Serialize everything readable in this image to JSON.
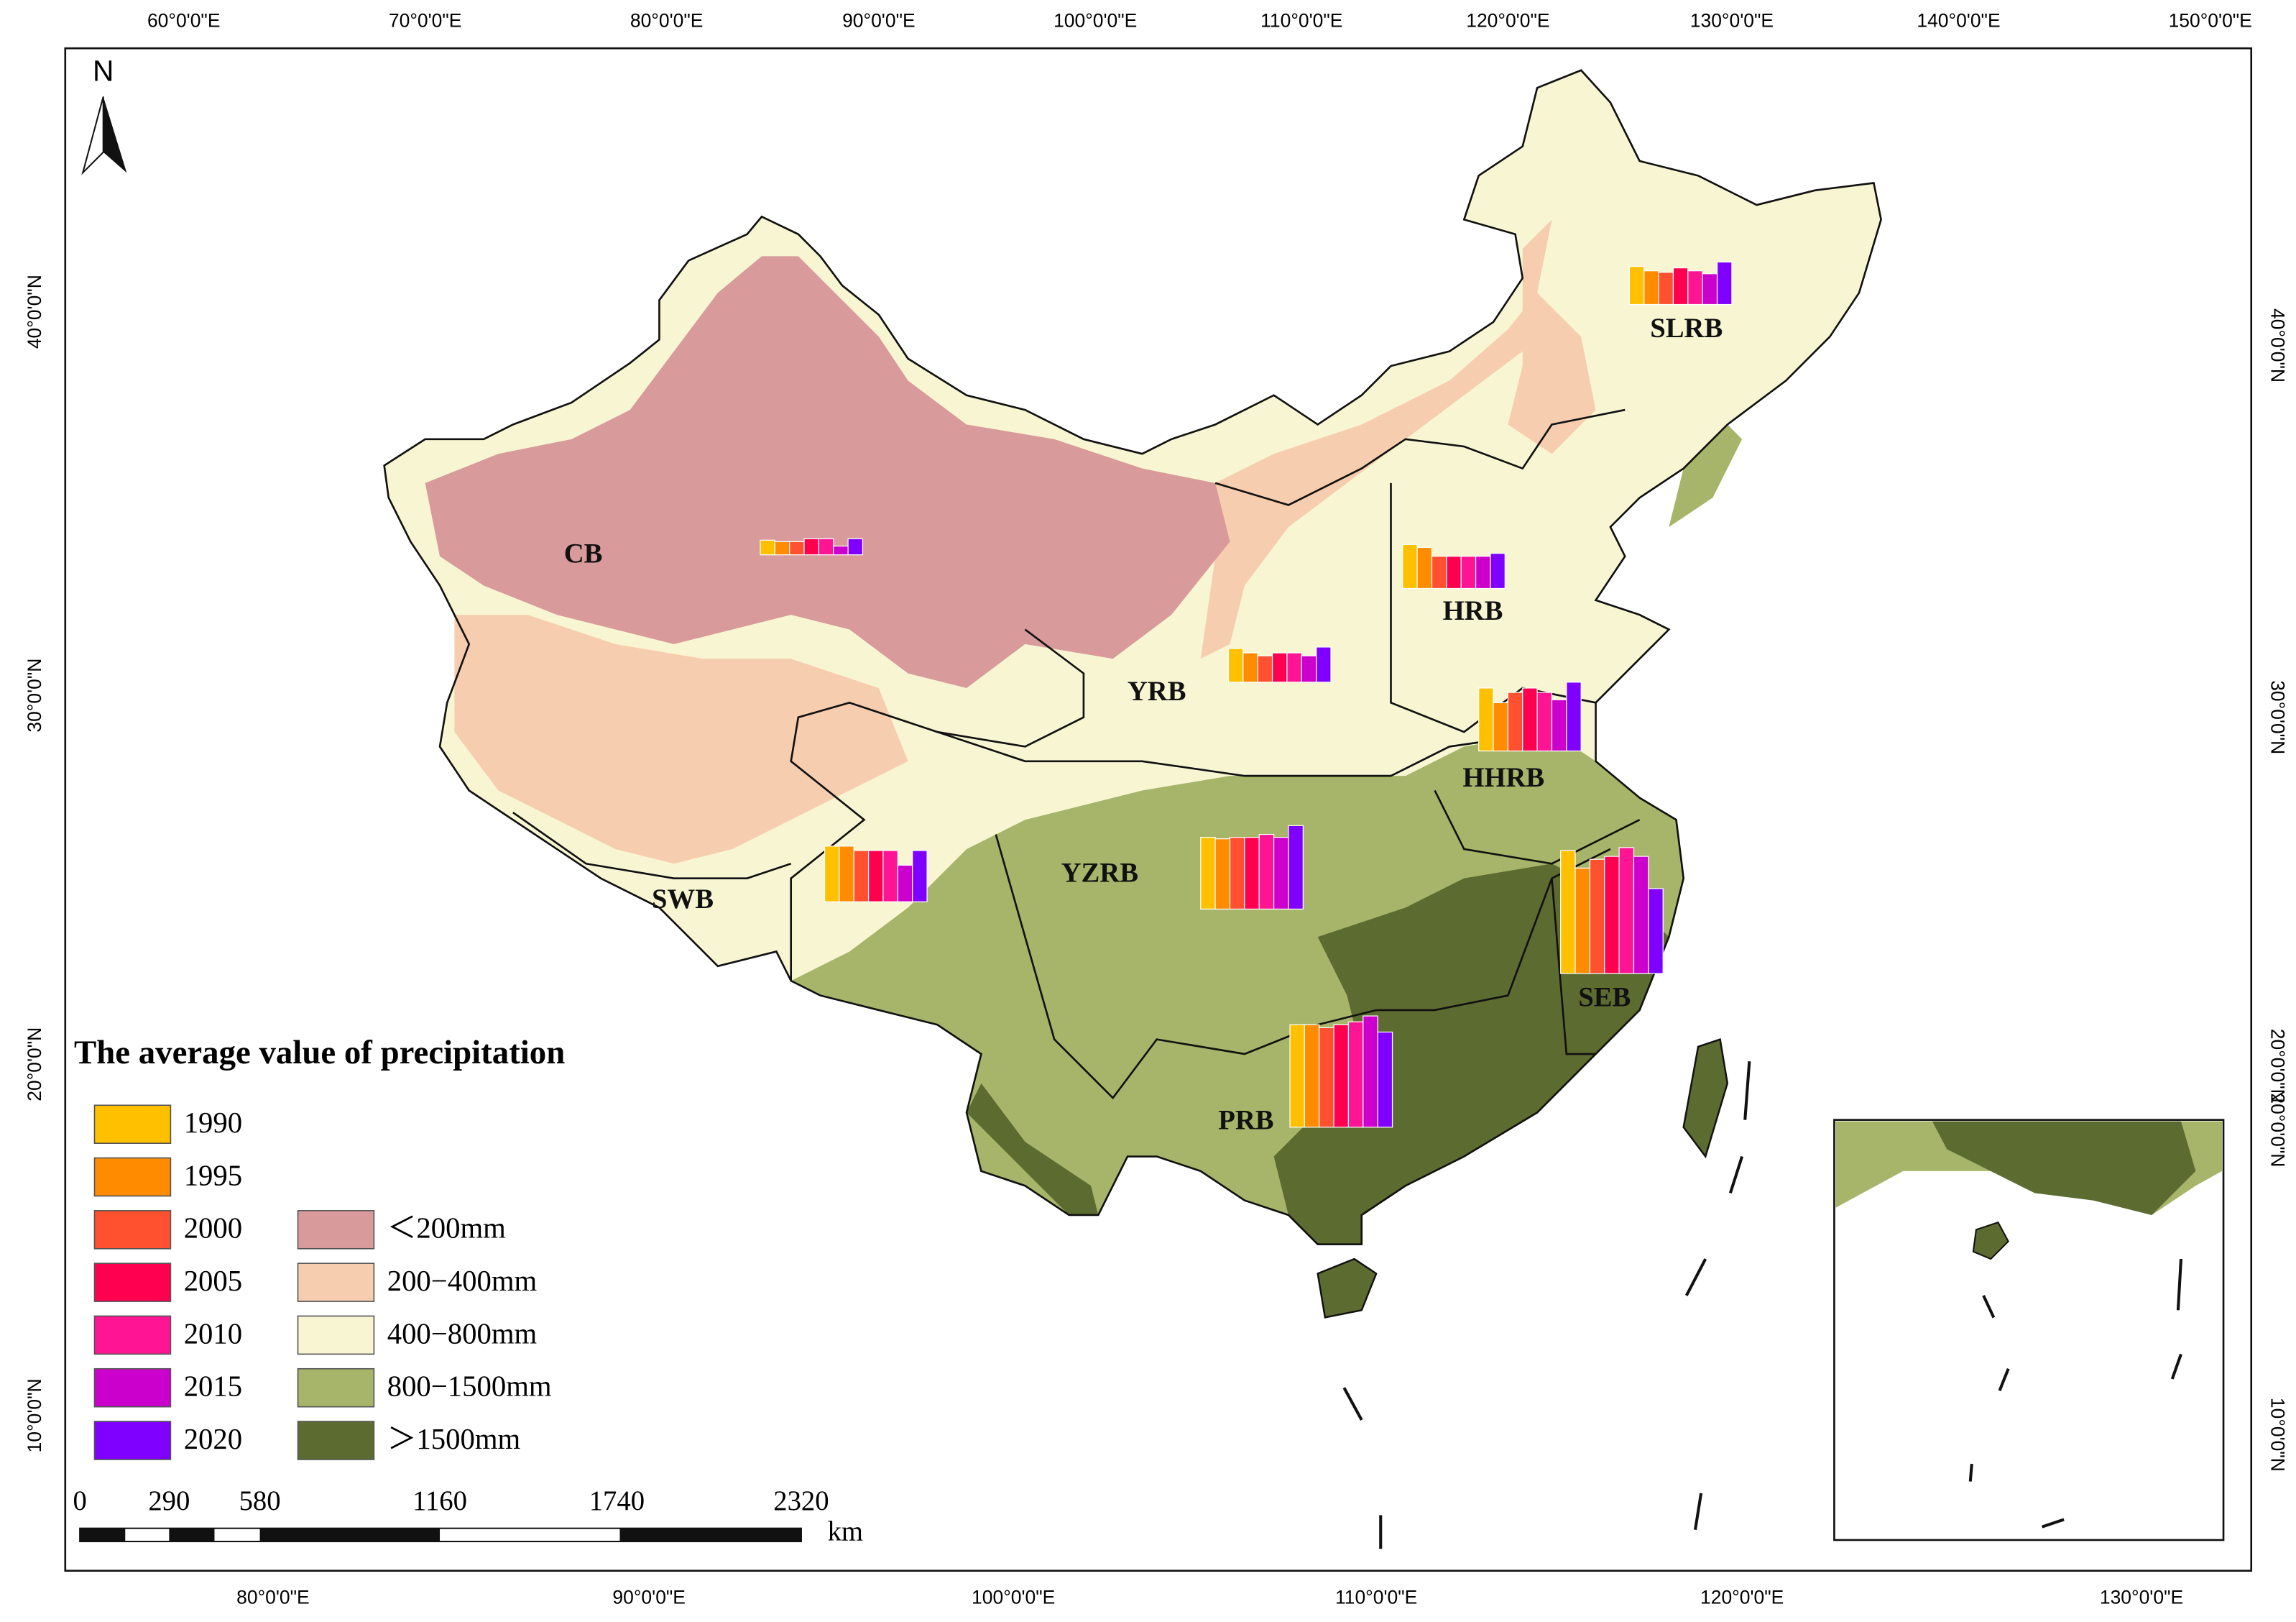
{
  "legend_title": "The average value of precipitation",
  "years": [
    {
      "label": "1990",
      "color": "#FFC000"
    },
    {
      "label": "1995",
      "color": "#FF8C00"
    },
    {
      "label": "2000",
      "color": "#FF5030"
    },
    {
      "label": "2005",
      "color": "#FF0050"
    },
    {
      "label": "2010",
      "color": "#FF1493"
    },
    {
      "label": "2015",
      "color": "#CC00CC"
    },
    {
      "label": "2020",
      "color": "#7F00FF"
    }
  ],
  "zones": [
    {
      "label": "＜200mm",
      "color": "#D89A9A"
    },
    {
      "label": "200−400mm",
      "color": "#F7CDB0"
    },
    {
      "label": "400−800mm",
      "color": "#F8F6D2"
    },
    {
      "label": "800−1500mm",
      "color": "#A7B56A"
    },
    {
      "label": "＞1500mm",
      "color": "#5C6B30"
    }
  ],
  "basins": [
    {
      "label": "SLRB",
      "values": [
        520,
        460,
        440,
        500,
        460,
        420,
        580
      ]
    },
    {
      "label": "CB",
      "values": [
        200,
        180,
        180,
        220,
        220,
        120,
        220
      ]
    },
    {
      "label": "HRB",
      "values": [
        600,
        560,
        440,
        440,
        440,
        440,
        480
      ]
    },
    {
      "label": "YRB",
      "values": [
        460,
        400,
        360,
        400,
        400,
        360,
        480
      ]
    },
    {
      "label": "HHRB",
      "values": [
        860,
        660,
        800,
        860,
        800,
        700,
        940
      ]
    },
    {
      "label": "SWB",
      "values": [
        760,
        760,
        700,
        700,
        700,
        500,
        700
      ]
    },
    {
      "label": "YZRB",
      "values": [
        980,
        960,
        980,
        980,
        1020,
        980,
        1140
      ]
    },
    {
      "label": "SEB",
      "values": [
        1680,
        1440,
        1560,
        1600,
        1720,
        1600,
        1160
      ]
    },
    {
      "label": "PRB",
      "values": [
        1400,
        1400,
        1360,
        1400,
        1440,
        1520,
        1300
      ]
    }
  ],
  "top_labels": [
    "60°0'0\"E",
    "70°0'0\"E",
    "80°0'0\"E",
    "90°0'0\"E",
    "100°0'0\"E",
    "110°0'0\"E",
    "120°0'0\"E",
    "130°0'0\"E",
    "140°0'0\"E",
    "150°0'0\"E"
  ],
  "bottom_labels": [
    "80°0'0\"E",
    "90°0'0\"E",
    "100°0'0\"E",
    "110°0'0\"E",
    "120°0'0\"E",
    "130°0'0\"E"
  ],
  "left_labels": [
    "40°0'0\"N",
    "30°0'0\"N",
    "20°0'0\"N",
    "10°0'0\"N"
  ],
  "right_labels": [
    "40°0'0\"N",
    "30°0'0\"N",
    "20°0'0\"N",
    "20°0'0\"N",
    "10°0'0\"N"
  ],
  "scale_labels": [
    "0",
    "290",
    "580",
    "1160",
    "1740",
    "2320"
  ],
  "scale_unit": "km",
  "north": "N"
}
